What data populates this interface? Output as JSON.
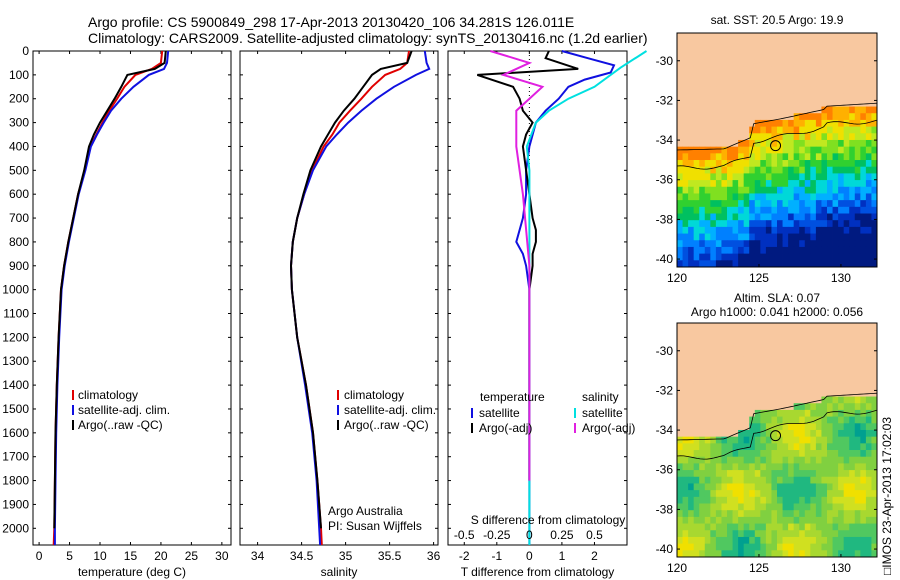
{
  "header": {
    "line1": "Argo profile: CS 5900849_298 17-Apr-2013 20130420_106 34.281S 126.011E",
    "line2": "Climatology: CARS2009. Satellite-adjusted climatology: synTS_20130416.nc (1.2d earlier)"
  },
  "side_label": "□IMOS 23-Apr-2013 17:02:03",
  "colors": {
    "climatology": "#e00000",
    "satellite": "#1010e0",
    "argo": "#000000",
    "salinity_sat": "#00e0e0",
    "salinity_argo": "#e020e0",
    "land": "#f8c8a0",
    "coast": "#000000"
  },
  "chart_data": [
    {
      "type": "line",
      "name": "temperature-profile",
      "xlabel": "temperature (deg C)",
      "ylabel": "",
      "xlim": [
        -1,
        31.5
      ],
      "ylim": [
        2070,
        0
      ],
      "xticks": [
        0,
        5,
        10,
        15,
        20,
        25,
        30
      ],
      "yticks": [
        0,
        100,
        200,
        300,
        400,
        500,
        600,
        700,
        800,
        900,
        1000,
        1100,
        1200,
        1300,
        1400,
        1500,
        1600,
        1700,
        1800,
        1900,
        2000
      ],
      "legend": [
        "climatology",
        "satellite-adj. clim.",
        "Argo(..raw -QC)"
      ],
      "legend_position": "lower-center",
      "series": [
        {
          "name": "climatology",
          "color": "#e00000",
          "x": [
            20.2,
            20.0,
            18.5,
            15.8,
            14.0,
            12.8,
            11.5,
            10.4,
            9.4,
            8.4,
            7.5,
            6.4,
            5.6,
            4.8,
            4.1,
            3.6,
            3.2,
            2.9,
            2.7,
            2.6,
            2.5,
            2.4
          ],
          "y": [
            0,
            50,
            75,
            100,
            150,
            200,
            250,
            300,
            350,
            400,
            500,
            600,
            700,
            800,
            900,
            1000,
            1200,
            1400,
            1600,
            1800,
            2000,
            2070
          ]
        },
        {
          "name": "satellite-adj. clim.",
          "color": "#1010e0",
          "x": [
            21.2,
            21.0,
            20.5,
            18.0,
            15.5,
            13.5,
            11.8,
            10.6,
            9.5,
            8.5,
            7.6,
            6.5,
            5.7,
            4.9,
            4.2,
            3.7,
            3.3,
            3.0,
            2.8,
            2.7,
            2.6,
            2.6
          ],
          "y": [
            0,
            50,
            75,
            100,
            150,
            200,
            250,
            300,
            350,
            400,
            500,
            600,
            700,
            800,
            900,
            1000,
            1200,
            1400,
            1600,
            1800,
            2000,
            2070
          ]
        },
        {
          "name": "Argo(..raw -QC)",
          "color": "#000000",
          "x": [
            20.8,
            20.6,
            19.0,
            14.5,
            13.5,
            12.4,
            11.2,
            10.0,
            9.0,
            8.2,
            7.4,
            6.4,
            5.6,
            4.8,
            4.1,
            3.6,
            3.2,
            2.9,
            2.7,
            2.6,
            2.5
          ],
          "y": [
            0,
            50,
            75,
            100,
            150,
            200,
            250,
            300,
            350,
            400,
            500,
            600,
            700,
            800,
            900,
            1000,
            1200,
            1400,
            1600,
            1800,
            2000
          ]
        }
      ]
    },
    {
      "type": "line",
      "name": "salinity-profile",
      "xlabel": "salinity",
      "ylabel": "",
      "xlim": [
        33.8,
        36.05
      ],
      "ylim": [
        2070,
        0
      ],
      "xticks": [
        34,
        34.5,
        35,
        35.5,
        36
      ],
      "legend": [
        "climatology",
        "satellite-adj. clim.",
        "Argo(..raw -QC)"
      ],
      "legend_position": "lower-right",
      "annotations": [
        "Argo Australia",
        "PI: Susan Wijffels"
      ],
      "series": [
        {
          "name": "climatology",
          "color": "#e00000",
          "x": [
            35.72,
            35.7,
            35.62,
            35.45,
            35.3,
            35.18,
            35.05,
            34.93,
            34.85,
            34.75,
            34.62,
            34.53,
            34.45,
            34.4,
            34.38,
            34.39,
            34.45,
            34.55,
            34.63,
            34.68,
            34.72,
            34.73
          ],
          "y": [
            0,
            50,
            75,
            100,
            150,
            200,
            250,
            300,
            350,
            400,
            500,
            600,
            700,
            800,
            900,
            1000,
            1200,
            1400,
            1600,
            1800,
            2000,
            2070
          ]
        },
        {
          "name": "satellite-adj. clim.",
          "color": "#1010e0",
          "x": [
            35.9,
            35.92,
            35.95,
            35.8,
            35.55,
            35.35,
            35.18,
            35.03,
            34.9,
            34.78,
            34.63,
            34.53,
            34.45,
            34.4,
            34.38,
            34.39,
            34.45,
            34.54,
            34.62,
            34.67,
            34.7,
            34.71
          ],
          "y": [
            0,
            50,
            75,
            100,
            150,
            200,
            250,
            300,
            350,
            400,
            500,
            600,
            700,
            800,
            900,
            1000,
            1200,
            1400,
            1600,
            1800,
            2000,
            2070
          ]
        },
        {
          "name": "Argo(..raw -QC)",
          "color": "#000000",
          "x": [
            35.75,
            35.7,
            35.4,
            35.3,
            35.2,
            35.1,
            34.98,
            34.88,
            34.8,
            34.72,
            34.6,
            34.52,
            34.45,
            34.4,
            34.38,
            34.39,
            34.45,
            34.55,
            34.63,
            34.68,
            34.72
          ],
          "y": [
            0,
            50,
            75,
            100,
            150,
            200,
            250,
            300,
            350,
            400,
            500,
            600,
            700,
            800,
            900,
            1000,
            1200,
            1400,
            1600,
            1800,
            2000
          ]
        }
      ]
    },
    {
      "type": "line",
      "name": "difference-profile",
      "xlabel": "T difference from climatology",
      "xlabel_top": "S difference from climatology",
      "ylabel": "",
      "xlim": [
        -2.5,
        3.0
      ],
      "ylim": [
        2070,
        0
      ],
      "xticks": [
        -2,
        -1,
        0,
        1,
        2
      ],
      "xticks_s": [
        -0.5,
        -0.25,
        0,
        0.25,
        0.5
      ],
      "xticks_s_labels": [
        "-0.5",
        "-0.25",
        "0",
        "0.25",
        "0.5"
      ],
      "legend_left_title": "temperature",
      "legend_right_title": "salinity",
      "legend_left": [
        "satellite",
        "Argo(-adj)"
      ],
      "legend_right": [
        "satellite",
        "Argo(-adj)"
      ],
      "series": [
        {
          "name": "T satellite",
          "color": "#1010e0",
          "x": [
            1.0,
            1.8,
            2.6,
            2.5,
            1.7,
            1.2,
            0.9,
            0.5,
            0.2,
            0.0,
            -0.1,
            -0.1,
            -0.2,
            -0.3,
            -0.4,
            -0.2,
            -0.1,
            0.0,
            0.0,
            0.0,
            0.0,
            0.0,
            0.0,
            0.0
          ],
          "y": [
            0,
            30,
            60,
            90,
            120,
            150,
            200,
            250,
            300,
            400,
            500,
            600,
            700,
            750,
            800,
            850,
            900,
            1000,
            1200,
            1400,
            1600,
            1800,
            2000,
            2070
          ]
        },
        {
          "name": "T Argo(-adj)",
          "color": "#000000",
          "x": [
            0.6,
            0.5,
            1.5,
            -1.6,
            -0.5,
            -0.3,
            -0.2,
            0.1,
            -0.1,
            -0.2,
            -0.1,
            0.0,
            0.1,
            0.2,
            0.2,
            0.1,
            0.1,
            0.0,
            0.0,
            0.0,
            0.0,
            0.0
          ],
          "y": [
            0,
            30,
            75,
            100,
            150,
            200,
            250,
            300,
            350,
            400,
            500,
            600,
            700,
            750,
            800,
            850,
            900,
            1000,
            1200,
            1400,
            1600,
            1800
          ]
        },
        {
          "name": "S satellite",
          "color": "#00e0e0",
          "x": [
            0.9,
            0.7,
            0.5,
            0.3,
            0.15,
            0.05,
            -0.02,
            0.0,
            0.0,
            0.0,
            0.0,
            0.0,
            0.0,
            0.0,
            0.0
          ],
          "y": [
            0,
            70,
            150,
            200,
            250,
            300,
            400,
            500,
            700,
            900,
            1000,
            1300,
            1600,
            1900,
            2070
          ]
        },
        {
          "name": "S Argo(-adj)",
          "color": "#e020e0",
          "x": [
            -0.3,
            0.0,
            -0.2,
            0.1,
            -0.1,
            -0.1,
            -0.05,
            0.0,
            0.0,
            0.0
          ],
          "y": [
            0,
            50,
            100,
            150,
            250,
            400,
            600,
            900,
            1300,
            1800
          ]
        }
      ]
    },
    {
      "type": "heatmap",
      "name": "sst-map",
      "title": "sat. SST: 20.5 Argo: 19.9",
      "xlim": [
        120,
        132.2
      ],
      "ylim": [
        -40.4,
        -28.6
      ],
      "xticks": [
        120,
        125,
        130
      ],
      "yticks": [
        -30,
        -32,
        -34,
        -36,
        -38,
        -40
      ],
      "yticklabels": [
        "-30",
        "-32",
        "-34",
        "-36",
        "-38",
        "-40"
      ],
      "marker": {
        "lon": 126.011,
        "lat": -34.281
      }
    },
    {
      "type": "heatmap",
      "name": "sla-map",
      "title": "Altim. SLA: 0.07",
      "subtitle": "Argo h1000: 0.041 h2000: 0.056",
      "xlim": [
        120,
        132.2
      ],
      "ylim": [
        -40.4,
        -28.6
      ],
      "xticks": [
        120,
        125,
        130
      ],
      "yticks": [
        -30,
        -32,
        -34,
        -36,
        -38,
        -40
      ],
      "yticklabels": [
        "-30",
        "-32",
        "-34",
        "-36",
        "-38",
        "-40"
      ],
      "marker": {
        "lon": 126.011,
        "lat": -34.281
      }
    }
  ]
}
